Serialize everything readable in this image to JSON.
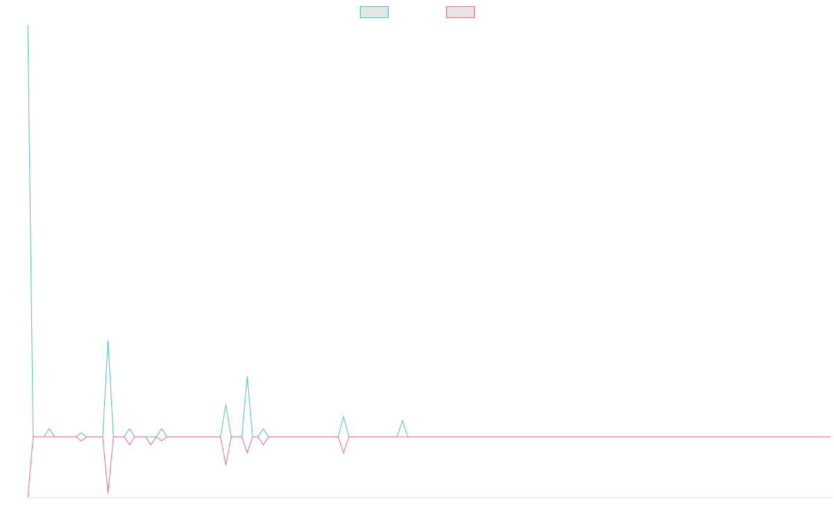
{
  "chart_data": {
    "type": "line",
    "title": "",
    "xlabel": "",
    "ylabel": "",
    "grid": false,
    "legend": "top-center",
    "ylim": [
      -15,
      102
    ],
    "x": [
      0,
      1,
      2,
      3,
      4,
      5,
      6,
      7,
      8,
      9,
      10,
      11,
      12,
      13,
      14,
      15,
      16,
      17,
      18,
      19,
      20,
      21,
      22,
      23,
      24,
      25,
      26,
      27,
      28,
      29,
      30,
      31,
      32,
      33,
      34,
      35,
      36,
      37,
      38,
      39,
      40,
      41,
      42,
      43,
      44,
      45,
      46,
      47,
      48,
      49,
      50,
      51,
      52,
      53,
      54,
      55,
      56,
      57,
      58,
      59,
      60,
      61,
      62,
      63,
      64,
      65,
      66,
      67,
      68,
      69,
      70,
      71,
      72,
      73,
      74,
      75,
      76,
      77,
      78,
      79,
      80,
      81,
      82,
      83,
      84,
      85,
      86,
      87,
      88,
      89,
      90,
      91,
      92,
      93,
      94,
      95,
      96,
      97,
      98,
      99,
      100,
      101,
      102,
      103,
      104,
      105,
      106,
      107,
      108,
      109,
      110,
      111,
      112,
      113,
      114,
      115,
      116,
      117,
      118,
      119,
      120,
      121,
      122,
      123,
      124,
      125,
      126,
      127,
      128,
      129,
      130,
      131,
      132,
      133,
      134,
      135,
      136,
      137,
      138,
      139,
      140,
      141,
      142,
      143,
      144,
      145,
      146,
      147,
      148,
      149,
      150
    ],
    "series": [
      {
        "color": "#4bc0c0",
        "values": [
          102,
          0,
          0,
          0,
          2,
          0,
          0,
          0,
          0,
          0,
          1,
          0,
          0,
          0,
          0,
          24,
          0,
          0,
          0,
          2,
          0,
          0,
          0,
          0,
          0,
          2,
          0,
          0,
          0,
          0,
          0,
          0,
          0,
          0,
          0,
          0,
          0,
          8,
          0,
          0,
          0,
          15,
          0,
          0,
          2,
          0,
          0,
          0,
          0,
          0,
          0,
          0,
          0,
          0,
          0,
          0,
          0,
          0,
          0,
          5,
          0,
          0,
          0,
          0,
          0,
          0,
          0,
          0,
          0,
          0,
          4,
          0,
          0,
          0,
          0,
          0,
          0,
          0,
          0,
          0,
          0,
          0,
          0,
          0,
          0,
          0,
          0,
          0,
          0,
          0,
          0,
          0,
          0,
          0,
          0,
          0,
          0,
          0,
          0,
          0,
          0,
          0,
          0,
          0,
          0,
          0,
          0,
          0,
          0,
          0,
          0,
          0,
          0,
          0,
          0,
          0,
          0,
          0,
          0,
          0,
          0,
          0,
          0,
          0,
          0,
          0,
          0,
          0,
          0,
          0,
          0,
          0,
          0,
          0,
          0,
          0,
          0,
          0,
          0,
          0,
          0,
          0,
          0,
          0,
          0,
          0,
          0,
          0,
          0,
          0,
          0
        ]
      },
      {
        "color": "#ff6384",
        "values": [
          -15,
          0,
          0,
          0,
          0,
          0,
          0,
          0,
          0,
          0,
          -1,
          0,
          0,
          0,
          0,
          -14,
          0,
          0,
          0,
          -2,
          0,
          0,
          0,
          -2,
          0,
          -1,
          0,
          0,
          0,
          0,
          0,
          0,
          0,
          0,
          0,
          0,
          0,
          -7,
          0,
          0,
          0,
          -4,
          0,
          0,
          -2,
          0,
          0,
          0,
          0,
          0,
          0,
          0,
          0,
          0,
          0,
          0,
          0,
          0,
          0,
          -4,
          0,
          0,
          0,
          0,
          0,
          0,
          0,
          0,
          0,
          0,
          0,
          0,
          0,
          0,
          0,
          0,
          0,
          0,
          0,
          0,
          0,
          0,
          0,
          0,
          0,
          0,
          0,
          0,
          0,
          0,
          0,
          0,
          0,
          0,
          0,
          0,
          0,
          0,
          0,
          0,
          0,
          0,
          0,
          0,
          0,
          0,
          0,
          0,
          0,
          0,
          0,
          0,
          0,
          0,
          0,
          0,
          0,
          0,
          0,
          0,
          0,
          0,
          0,
          0,
          0,
          0,
          0,
          0,
          0,
          0,
          0,
          0,
          0,
          0,
          0,
          0,
          0,
          0,
          0,
          0,
          0,
          0,
          0,
          0,
          0,
          0,
          0,
          0,
          0,
          0,
          0
        ]
      }
    ]
  }
}
